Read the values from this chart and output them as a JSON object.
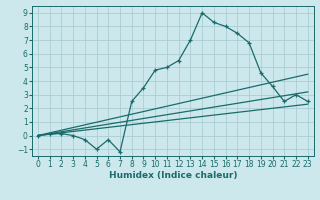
{
  "xlabel": "Humidex (Indice chaleur)",
  "bg_color": "#cce8ec",
  "grid_color": "#aacdd4",
  "line_color": "#1a6b6b",
  "xlim": [
    -0.5,
    23.5
  ],
  "ylim": [
    -1.5,
    9.5
  ],
  "xticks": [
    0,
    1,
    2,
    3,
    4,
    5,
    6,
    7,
    8,
    9,
    10,
    11,
    12,
    13,
    14,
    15,
    16,
    17,
    18,
    19,
    20,
    21,
    22,
    23
  ],
  "yticks": [
    -1,
    0,
    1,
    2,
    3,
    4,
    5,
    6,
    7,
    8,
    9
  ],
  "line1_x": [
    0,
    23
  ],
  "line1_y": [
    0.0,
    2.3
  ],
  "line2_x": [
    0,
    23
  ],
  "line2_y": [
    0.0,
    3.2
  ],
  "line3_x": [
    0,
    23
  ],
  "line3_y": [
    0.0,
    4.5
  ],
  "zigzag_x": [
    0,
    1,
    2,
    3,
    4,
    5,
    6,
    7,
    8,
    9,
    10,
    11,
    12,
    13,
    14,
    15,
    16,
    17,
    18,
    19,
    20,
    21,
    22,
    23
  ],
  "zigzag_y": [
    0.0,
    0.1,
    0.15,
    0.0,
    -0.3,
    -1.0,
    -0.3,
    -1.2,
    2.5,
    3.5,
    4.8,
    5.0,
    5.5,
    7.0,
    9.0,
    8.3,
    8.0,
    7.5,
    6.8,
    4.6,
    3.6,
    2.5,
    3.0,
    2.5
  ]
}
